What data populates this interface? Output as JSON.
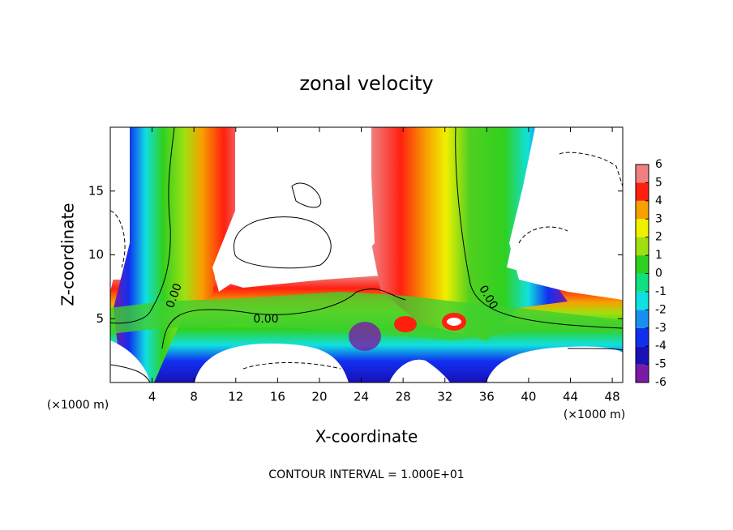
{
  "chart_data": {
    "type": "contour",
    "title": "zonal velocity",
    "x_label": "X-coordinate",
    "y_label": "Z-coordinate",
    "x_unit_label": "(×1000 m)",
    "footer": "CONTOUR INTERVAL = 1.000E+01",
    "contour_labels": [
      "0.00",
      "0.00",
      "0.00"
    ],
    "xlim": [
      0,
      49
    ],
    "xticks": [
      4,
      8,
      12,
      16,
      20,
      24,
      28,
      32,
      36,
      40,
      44,
      48
    ],
    "ylim": [
      0,
      20
    ],
    "yticks": [
      5,
      10,
      15
    ],
    "colorbar": {
      "ticks": [
        -6,
        -5,
        -4,
        -3,
        -2,
        -1,
        0,
        1,
        2,
        3,
        4,
        5,
        6
      ],
      "colors": [
        "#7a1aa8",
        "#1a10b8",
        "#1030f0",
        "#1890f0",
        "#10e0e0",
        "#10e080",
        "#30d020",
        "#a0e010",
        "#f0f000",
        "#f8a000",
        "#ff2010",
        "#f08080"
      ]
    }
  }
}
